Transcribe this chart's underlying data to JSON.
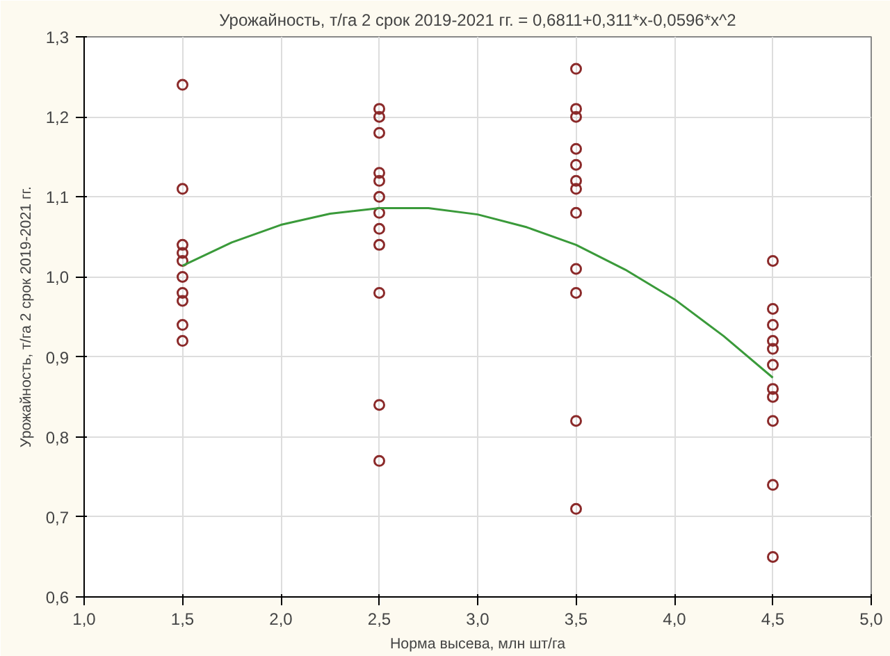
{
  "chart_data": {
    "type": "scatter",
    "title": "Урожайность, т/га 2 срок 2019-2021 гг. = 0,6811+0,311*x-0,0596*x^2",
    "xlabel": "Норма высева, млн шт/га",
    "ylabel": "Урожайность, т/га 2 срок 2019-2021 гг.",
    "xlim": [
      1.0,
      5.0
    ],
    "ylim": [
      0.6,
      1.3
    ],
    "xticks": [
      {
        "value": 1.0,
        "label": "1,0"
      },
      {
        "value": 1.5,
        "label": "1,5"
      },
      {
        "value": 2.0,
        "label": "2,0"
      },
      {
        "value": 2.5,
        "label": "2,5"
      },
      {
        "value": 3.0,
        "label": "3,0"
      },
      {
        "value": 3.5,
        "label": "3,5"
      },
      {
        "value": 4.0,
        "label": "4,0"
      },
      {
        "value": 4.5,
        "label": "4,5"
      },
      {
        "value": 5.0,
        "label": "5,0"
      }
    ],
    "yticks": [
      {
        "value": 0.6,
        "label": "0,6"
      },
      {
        "value": 0.7,
        "label": "0,7"
      },
      {
        "value": 0.8,
        "label": "0,8"
      },
      {
        "value": 0.9,
        "label": "0,9"
      },
      {
        "value": 1.0,
        "label": "1,0"
      },
      {
        "value": 1.1,
        "label": "1,1"
      },
      {
        "value": 1.2,
        "label": "1,2"
      },
      {
        "value": 1.3,
        "label": "1,3"
      }
    ],
    "grid": true,
    "series": [
      {
        "marker": "circle",
        "color": "#8b2a2a",
        "x": [
          1.5,
          1.5,
          1.5,
          1.5,
          1.5,
          1.5,
          1.5,
          1.5,
          1.5,
          1.5,
          2.5,
          2.5,
          2.5,
          2.5,
          2.5,
          2.5,
          2.5,
          2.5,
          2.5,
          2.5,
          2.5,
          2.5,
          3.5,
          3.5,
          3.5,
          3.5,
          3.5,
          3.5,
          3.5,
          3.5,
          3.5,
          3.5,
          3.5,
          3.5,
          4.5,
          4.5,
          4.5,
          4.5,
          4.5,
          4.5,
          4.5,
          4.5,
          4.5,
          4.5,
          4.5
        ],
        "values": [
          1.24,
          1.11,
          1.04,
          1.03,
          1.02,
          1.0,
          0.98,
          0.97,
          0.94,
          0.92,
          1.21,
          1.2,
          1.18,
          1.13,
          1.12,
          1.1,
          1.08,
          1.06,
          1.04,
          0.98,
          0.84,
          0.77,
          1.26,
          1.21,
          1.2,
          1.16,
          1.14,
          1.12,
          1.11,
          1.08,
          1.01,
          0.98,
          0.82,
          0.71,
          1.02,
          0.96,
          0.94,
          0.92,
          0.91,
          0.89,
          0.86,
          0.85,
          0.82,
          0.74,
          0.65
        ]
      },
      {
        "type": "line",
        "marker": "none",
        "color": "#3a9a3a",
        "line_style": "solid",
        "x": [
          1.5,
          1.75,
          2.0,
          2.25,
          2.5,
          2.75,
          3.0,
          3.25,
          3.5,
          3.75,
          4.0,
          4.25,
          4.5
        ],
        "values": [
          1.014,
          1.043,
          1.065,
          1.079,
          1.086,
          1.086,
          1.078,
          1.062,
          1.04,
          1.009,
          0.972,
          0.926,
          0.874
        ]
      }
    ]
  }
}
